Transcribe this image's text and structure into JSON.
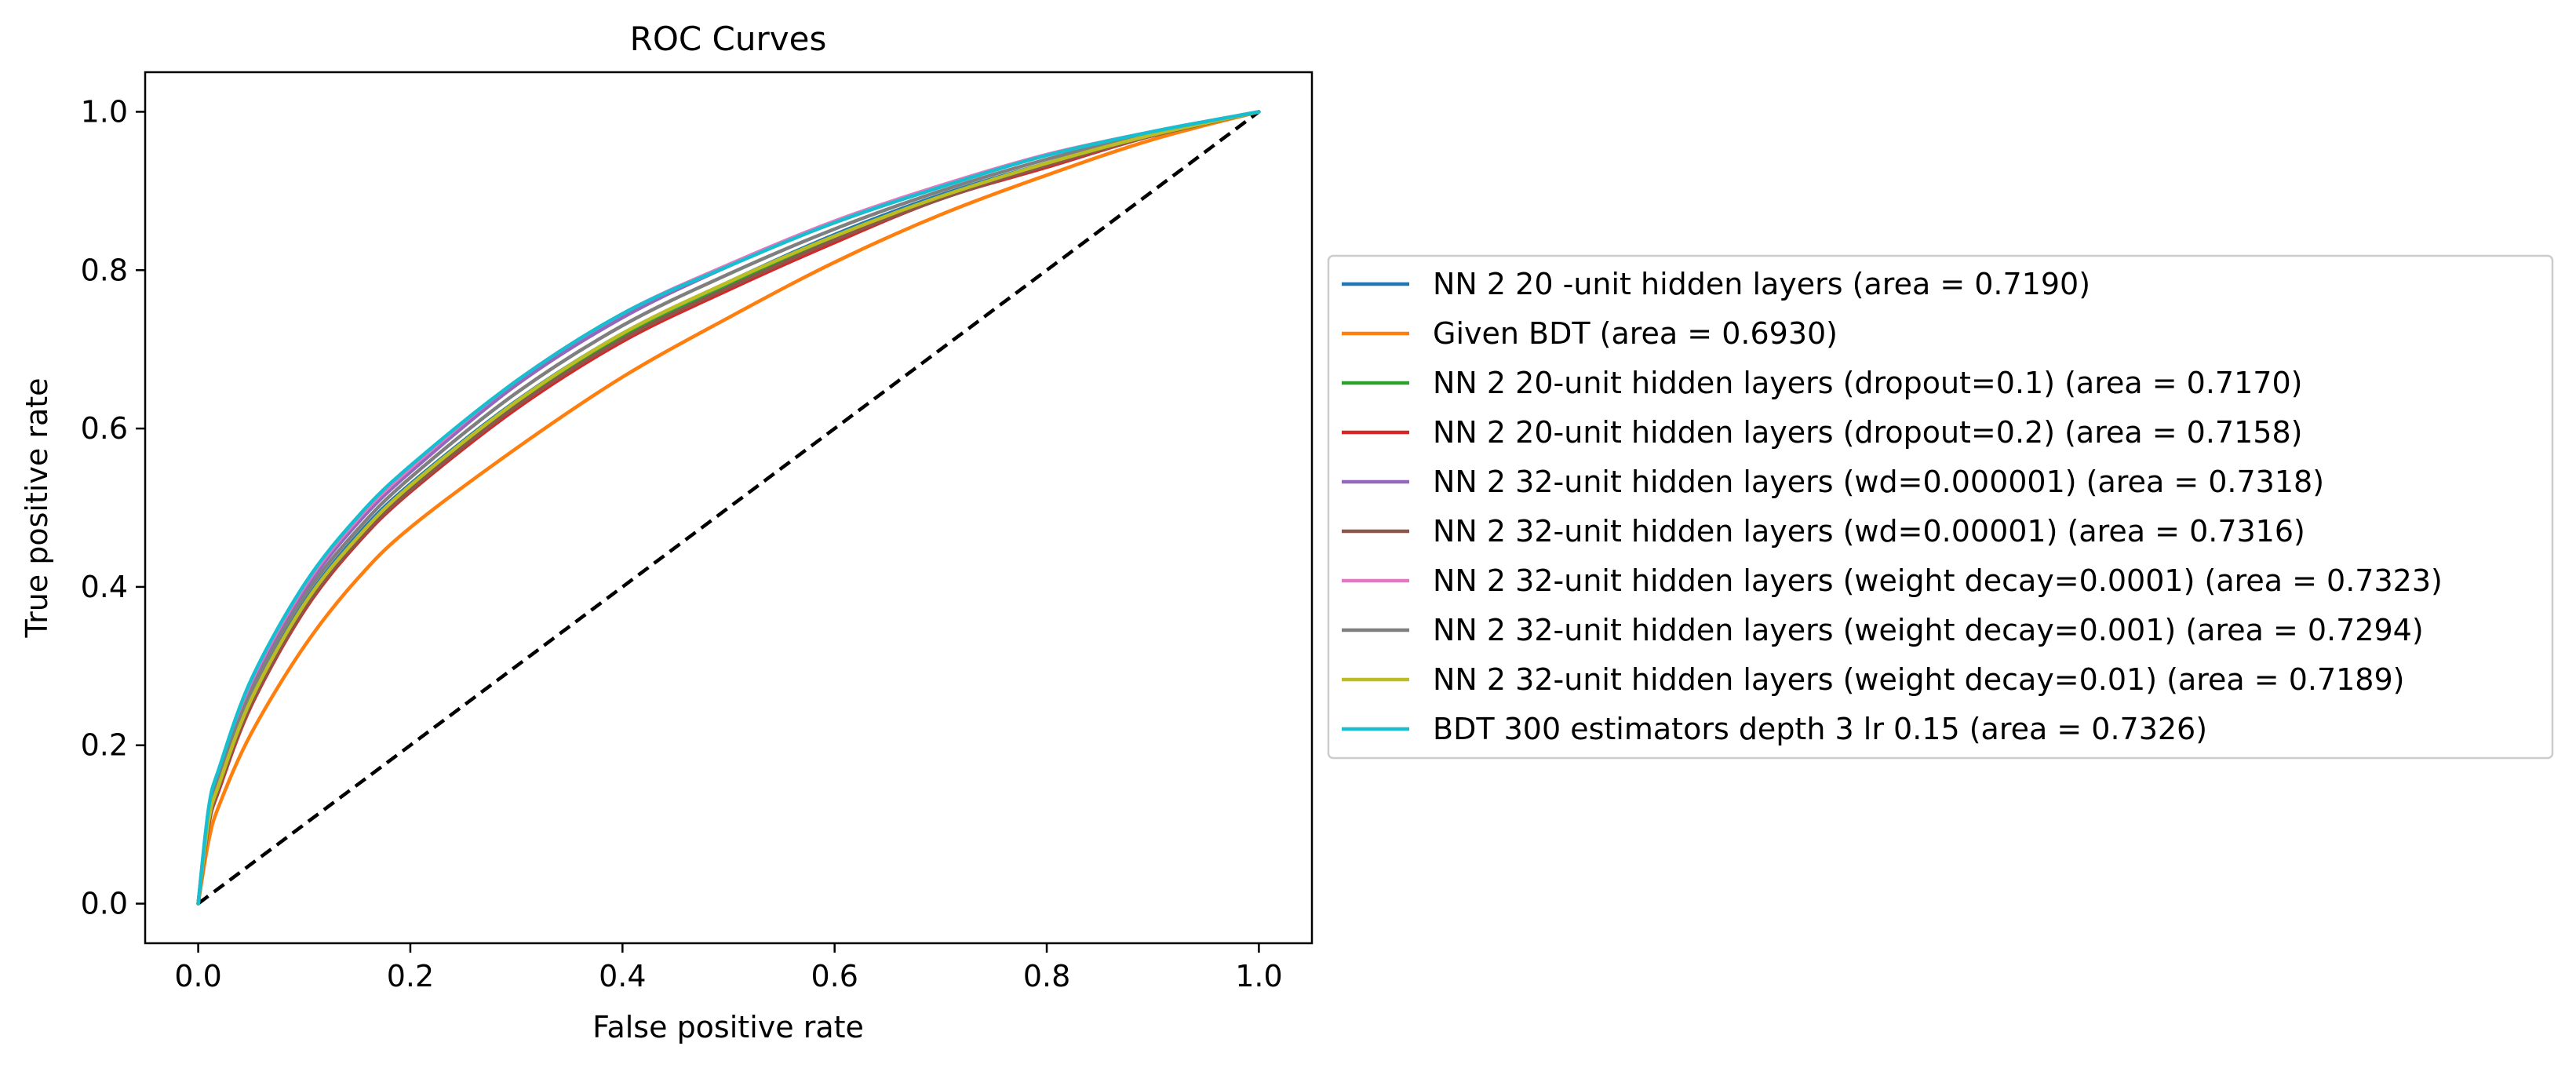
{
  "chart_data": {
    "type": "line",
    "title": "ROC Curves",
    "xlabel": "False positive rate",
    "ylabel": "True positive rate",
    "xlim": [
      -0.05,
      1.05
    ],
    "ylim": [
      -0.05,
      1.05
    ],
    "xticks": [
      0.0,
      0.2,
      0.4,
      0.6,
      0.8,
      1.0
    ],
    "xtick_labels": [
      "0.0",
      "0.2",
      "0.4",
      "0.6",
      "0.8",
      "1.0"
    ],
    "yticks": [
      0.0,
      0.2,
      0.4,
      0.6,
      0.8,
      1.0
    ],
    "ytick_labels": [
      "0.0",
      "0.2",
      "0.4",
      "0.6",
      "0.8",
      "1.0"
    ],
    "grid": false,
    "legend_position": "center-left, outside right of plot",
    "x": [
      0.0,
      0.01,
      0.02,
      0.05,
      0.1,
      0.15,
      0.2,
      0.3,
      0.4,
      0.5,
      0.6,
      0.7,
      0.8,
      0.9,
      1.0
    ],
    "diagonal": {
      "x": [
        0.0,
        1.0
      ],
      "y": [
        0.0,
        1.0
      ],
      "color": "#000000",
      "style": "dashed"
    },
    "series": [
      {
        "name": "NN 2 20 -unit hidden layers (area = 0.7190)",
        "color": "#1f77b4",
        "y": [
          0.0,
          0.11,
          0.155,
          0.26,
          0.38,
          0.465,
          0.53,
          0.635,
          0.72,
          0.785,
          0.845,
          0.895,
          0.935,
          0.97,
          1.0
        ]
      },
      {
        "name": "Given BDT (area = 0.6930)",
        "color": "#ff7f0e",
        "y": [
          0.0,
          0.08,
          0.125,
          0.215,
          0.325,
          0.41,
          0.475,
          0.575,
          0.665,
          0.74,
          0.81,
          0.87,
          0.92,
          0.965,
          1.0
        ]
      },
      {
        "name": "NN 2 20-unit hidden layers (dropout=0.1) (area = 0.7170)",
        "color": "#2ca02c",
        "y": [
          0.0,
          0.105,
          0.15,
          0.255,
          0.375,
          0.46,
          0.525,
          0.63,
          0.715,
          0.78,
          0.84,
          0.89,
          0.935,
          0.97,
          1.0
        ]
      },
      {
        "name": "NN 2 20-unit hidden layers (dropout=0.2) (area = 0.7158)",
        "color": "#d62728",
        "y": [
          0.0,
          0.1,
          0.145,
          0.25,
          0.37,
          0.455,
          0.52,
          0.625,
          0.71,
          0.775,
          0.835,
          0.89,
          0.93,
          0.97,
          1.0
        ]
      },
      {
        "name": "NN 2 32-unit hidden layers (wd=0.000001) (area = 0.7318)",
        "color": "#9467bd",
        "y": [
          0.0,
          0.115,
          0.165,
          0.275,
          0.395,
          0.48,
          0.545,
          0.655,
          0.74,
          0.805,
          0.86,
          0.905,
          0.945,
          0.975,
          1.0
        ]
      },
      {
        "name": "NN 2 32-unit hidden layers (wd=0.00001) (area = 0.7316)",
        "color": "#8c564b",
        "y": [
          0.0,
          0.1,
          0.148,
          0.252,
          0.372,
          0.457,
          0.522,
          0.628,
          0.713,
          0.778,
          0.838,
          0.89,
          0.932,
          0.97,
          1.0
        ]
      },
      {
        "name": "NN 2 32-unit hidden layers (weight decay=0.0001) (area = 0.7323)",
        "color": "#e377c2",
        "y": [
          0.0,
          0.12,
          0.17,
          0.28,
          0.4,
          0.485,
          0.55,
          0.66,
          0.745,
          0.807,
          0.862,
          0.907,
          0.946,
          0.975,
          1.0
        ]
      },
      {
        "name": "NN 2 32-unit hidden layers (weight decay=0.001) (area = 0.7294)",
        "color": "#7f7f7f",
        "y": [
          0.0,
          0.112,
          0.16,
          0.268,
          0.388,
          0.472,
          0.538,
          0.645,
          0.73,
          0.795,
          0.852,
          0.9,
          0.94,
          0.973,
          1.0
        ]
      },
      {
        "name": "NN 2 32-unit hidden layers (weight decay=0.01) (area = 0.7189)",
        "color": "#bcbd22",
        "y": [
          0.0,
          0.106,
          0.152,
          0.258,
          0.378,
          0.462,
          0.528,
          0.634,
          0.72,
          0.785,
          0.843,
          0.893,
          0.935,
          0.971,
          1.0
        ]
      },
      {
        "name": "BDT 300 estimators depth 3 lr 0.15 (area = 0.7326)",
        "color": "#17becf",
        "y": [
          0.0,
          0.122,
          0.172,
          0.283,
          0.403,
          0.488,
          0.553,
          0.66,
          0.745,
          0.805,
          0.86,
          0.905,
          0.945,
          0.975,
          1.0
        ]
      }
    ]
  }
}
